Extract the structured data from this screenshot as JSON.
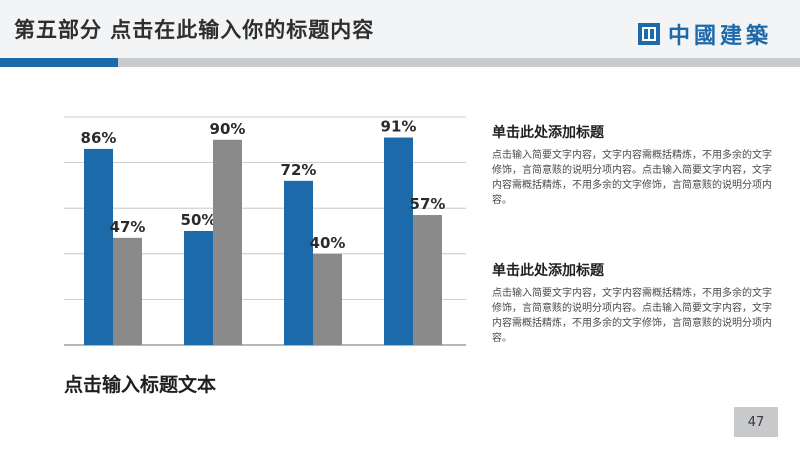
{
  "header": {
    "title": "第五部分 点击在此输入你的标题内容",
    "logo_text": "中國建築",
    "brand_color": "#1d6aab"
  },
  "text_blocks": [
    {
      "heading": "单击此处添加标题",
      "body": "点击输入简要文字内容，文字内容需概括精炼，不用多余的文字修饰，言简意赅的说明分项内容。点击输入简要文字内容，文字内容需概括精炼，不用多余的文字修饰，言简意赅的说明分项内容。"
    },
    {
      "heading": "单击此处添加标题",
      "body": "点击输入简要文字内容，文字内容需概括精炼，不用多余的文字修饰，言简意赅的说明分项内容。点击输入简要文字内容，文字内容需概括精炼，不用多余的文字修饰，言简意赅的说明分项内容。"
    }
  ],
  "bottom_title": "点击输入标题文本",
  "page_number": "47",
  "chart_data": {
    "type": "bar",
    "categories": [
      "",
      "",
      "",
      ""
    ],
    "series": [
      {
        "values": [
          86,
          50,
          72,
          91
        ],
        "labels": [
          "86%",
          "50%",
          "72%",
          "91%"
        ],
        "color": "#1d6aab"
      },
      {
        "values": [
          47,
          90,
          40,
          57
        ],
        "labels": [
          "47%",
          "90%",
          "40%",
          "57%"
        ],
        "color": "#8a8a8a"
      }
    ],
    "ylim": [
      0,
      100
    ],
    "grid": true,
    "legend": "none",
    "title": "",
    "xlabel": "",
    "ylabel": ""
  }
}
